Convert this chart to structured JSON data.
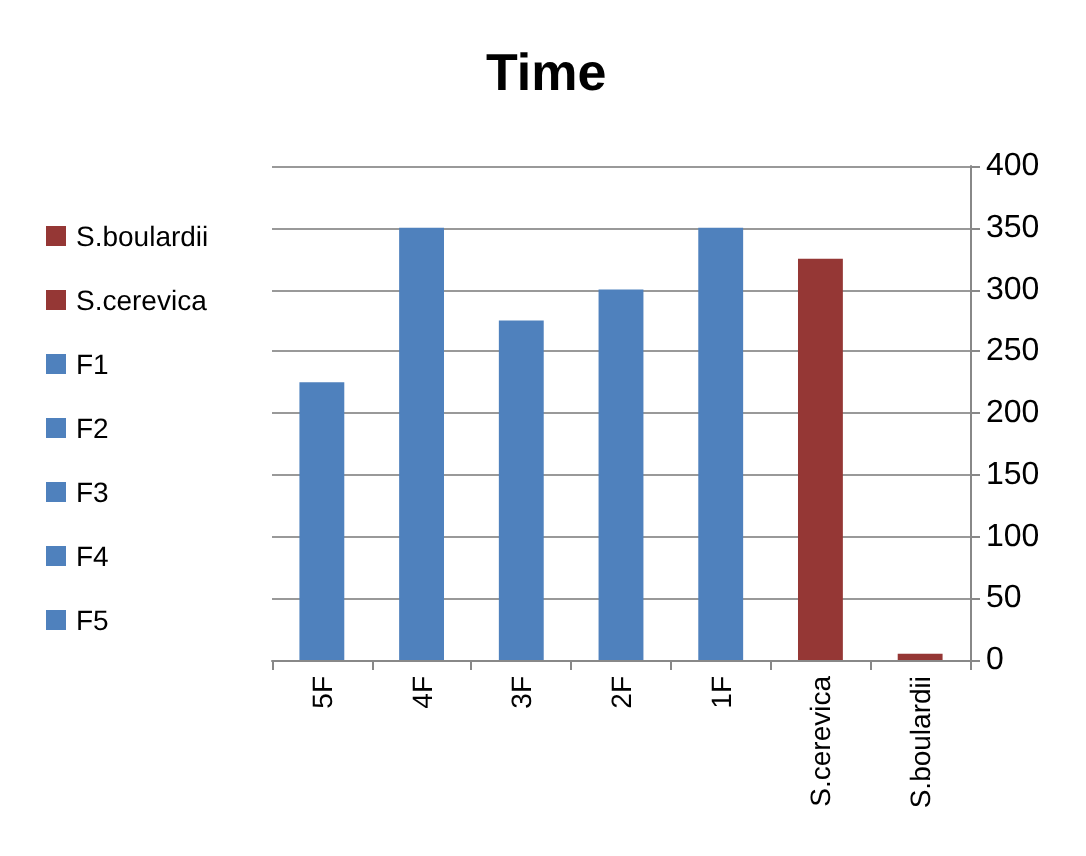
{
  "chart_data": {
    "type": "bar",
    "title": "Time",
    "categories": [
      "5F",
      "4F",
      "3F",
      "2F",
      "1F",
      "S.cerevica",
      "S.boulardii"
    ],
    "stacked": true,
    "series": [
      {
        "name": "S.boulardii",
        "color": "#953735",
        "values": [
          null,
          null,
          null,
          null,
          null,
          null,
          5
        ]
      },
      {
        "name": "S.cerevica",
        "color": "#953735",
        "values": [
          null,
          null,
          null,
          null,
          null,
          325,
          null
        ]
      },
      {
        "name": "F1",
        "color": "#4f81bd",
        "values": [
          null,
          null,
          null,
          null,
          350,
          null,
          null
        ]
      },
      {
        "name": "F2",
        "color": "#4f81bd",
        "values": [
          null,
          null,
          null,
          300,
          null,
          null,
          null
        ]
      },
      {
        "name": "F3",
        "color": "#4f81bd",
        "values": [
          null,
          null,
          275,
          null,
          null,
          null,
          null
        ]
      },
      {
        "name": "F4",
        "color": "#4f81bd",
        "values": [
          null,
          350,
          null,
          null,
          null,
          null,
          null
        ]
      },
      {
        "name": "F5",
        "color": "#4f81bd",
        "values": [
          225,
          null,
          null,
          null,
          null,
          null,
          null
        ]
      }
    ],
    "ylim": [
      0,
      400
    ],
    "yticks": [
      0,
      50,
      100,
      150,
      200,
      250,
      300,
      350,
      400
    ],
    "grid": "y",
    "legend": "left"
  }
}
